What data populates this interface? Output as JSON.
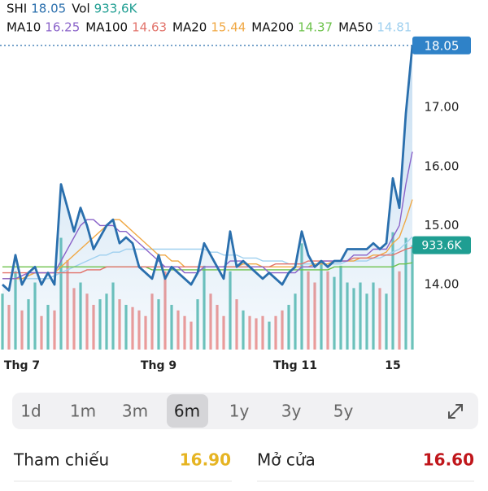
{
  "chart_data": {
    "type": "stock",
    "categories": [
      null,
      null,
      null,
      "Thg 7",
      null,
      null,
      null,
      null,
      null,
      null,
      null,
      null,
      null,
      null,
      null,
      null,
      null,
      null,
      null,
      null,
      null,
      null,
      null,
      null,
      "Thg 9",
      null,
      null,
      null,
      null,
      null,
      null,
      null,
      null,
      null,
      null,
      null,
      null,
      null,
      null,
      null,
      null,
      null,
      null,
      null,
      null,
      "Thg 11",
      null,
      null,
      null,
      null,
      null,
      null,
      null,
      null,
      null,
      null,
      null,
      null,
      null,
      null,
      "15",
      null,
      null,
      null
    ],
    "ylim": [
      12.9,
      18.2
    ],
    "yticks": [
      {
        "value": 14,
        "label": "14.00"
      },
      {
        "value": 15,
        "label": "15.00"
      },
      {
        "value": 16,
        "label": "16.00"
      },
      {
        "value": 17,
        "label": "17.00"
      }
    ],
    "y2lim": [
      0,
      2800000
    ],
    "grid": false,
    "series": [
      {
        "name": "SHI",
        "type": "area",
        "color": "#2a6fad",
        "values": [
          14.0,
          13.9,
          14.5,
          14.0,
          14.2,
          14.3,
          14.0,
          14.2,
          14.0,
          15.7,
          15.3,
          14.9,
          15.3,
          15.0,
          14.6,
          14.8,
          15.0,
          15.1,
          14.7,
          14.8,
          14.7,
          14.3,
          14.2,
          14.1,
          14.5,
          14.1,
          14.3,
          14.2,
          14.1,
          14.0,
          14.2,
          14.7,
          14.5,
          14.3,
          14.1,
          14.9,
          14.3,
          14.4,
          14.3,
          14.2,
          14.1,
          14.2,
          14.1,
          14.0,
          14.2,
          14.3,
          14.9,
          14.5,
          14.3,
          14.4,
          14.3,
          14.4,
          14.4,
          14.6,
          14.6,
          14.6,
          14.6,
          14.7,
          14.6,
          14.7,
          15.8,
          15.3,
          16.9,
          18.05
        ]
      },
      {
        "name": "Vol",
        "type": "bar",
        "axis": "y2",
        "color": "#1f9e92",
        "up_color": "#6cc3b9",
        "down_color": "#f29b97",
        "header_label": "933,6K",
        "tag_label": "933.6K",
        "values": [
          500000,
          400000,
          700000,
          350000,
          450000,
          600000,
          300000,
          400000,
          350000,
          1000000,
          800000,
          550000,
          600000,
          500000,
          400000,
          450000,
          500000,
          600000,
          450000,
          400000,
          380000,
          350000,
          300000,
          500000,
          450000,
          700000,
          400000,
          350000,
          300000,
          250000,
          450000,
          750000,
          500000,
          400000,
          300000,
          700000,
          450000,
          350000,
          300000,
          280000,
          300000,
          250000,
          300000,
          350000,
          400000,
          500000,
          950000,
          700000,
          600000,
          800000,
          700000,
          650000,
          750000,
          600000,
          550000,
          600000,
          500000,
          600000,
          550000,
          500000,
          1050000,
          700000,
          1000000,
          933600
        ]
      },
      {
        "name": "MA10",
        "type": "line",
        "color": "#8a63c9",
        "values": [
          14.1,
          14.1,
          14.1,
          14.15,
          14.2,
          14.2,
          14.2,
          14.2,
          14.2,
          14.4,
          14.6,
          14.8,
          15.0,
          15.1,
          15.1,
          15.0,
          15.0,
          15.0,
          14.9,
          14.9,
          14.8,
          14.7,
          14.6,
          14.5,
          14.4,
          14.3,
          14.3,
          14.3,
          14.2,
          14.2,
          14.2,
          14.3,
          14.3,
          14.3,
          14.3,
          14.4,
          14.4,
          14.4,
          14.3,
          14.3,
          14.3,
          14.2,
          14.2,
          14.2,
          14.2,
          14.2,
          14.3,
          14.3,
          14.3,
          14.4,
          14.4,
          14.4,
          14.4,
          14.4,
          14.5,
          14.5,
          14.5,
          14.6,
          14.6,
          14.6,
          14.8,
          15.0,
          15.7,
          16.25
        ]
      },
      {
        "name": "MA100",
        "type": "line",
        "color": "#e2736b",
        "values": [
          14.2,
          14.2,
          14.2,
          14.2,
          14.2,
          14.2,
          14.2,
          14.2,
          14.2,
          14.2,
          14.2,
          14.2,
          14.2,
          14.25,
          14.25,
          14.25,
          14.3,
          14.3,
          14.3,
          14.3,
          14.3,
          14.3,
          14.3,
          14.3,
          14.3,
          14.3,
          14.3,
          14.3,
          14.3,
          14.3,
          14.3,
          14.3,
          14.3,
          14.3,
          14.3,
          14.3,
          14.3,
          14.3,
          14.3,
          14.3,
          14.3,
          14.3,
          14.35,
          14.35,
          14.35,
          14.35,
          14.35,
          14.4,
          14.4,
          14.4,
          14.4,
          14.4,
          14.4,
          14.4,
          14.45,
          14.45,
          14.45,
          14.45,
          14.5,
          14.5,
          14.5,
          14.55,
          14.6,
          14.63
        ]
      },
      {
        "name": "MA20",
        "type": "line",
        "color": "#f0a844",
        "values": [
          14.1,
          14.1,
          14.1,
          14.1,
          14.15,
          14.2,
          14.2,
          14.2,
          14.2,
          14.3,
          14.4,
          14.5,
          14.6,
          14.7,
          14.8,
          14.9,
          15.0,
          15.1,
          15.1,
          15.0,
          14.9,
          14.8,
          14.7,
          14.6,
          14.5,
          14.5,
          14.4,
          14.4,
          14.3,
          14.3,
          14.3,
          14.3,
          14.3,
          14.3,
          14.3,
          14.3,
          14.3,
          14.35,
          14.35,
          14.35,
          14.3,
          14.3,
          14.3,
          14.3,
          14.3,
          14.3,
          14.3,
          14.3,
          14.35,
          14.35,
          14.35,
          14.4,
          14.4,
          14.4,
          14.4,
          14.45,
          14.45,
          14.5,
          14.5,
          14.55,
          14.7,
          14.8,
          15.1,
          15.44
        ]
      },
      {
        "name": "MA200",
        "type": "line",
        "color": "#6dc24b",
        "values": [
          14.3,
          14.3,
          14.3,
          14.3,
          14.3,
          14.3,
          14.3,
          14.3,
          14.3,
          14.3,
          14.3,
          14.3,
          14.3,
          14.3,
          14.3,
          14.3,
          14.3,
          14.3,
          14.3,
          14.3,
          14.3,
          14.3,
          14.3,
          14.25,
          14.25,
          14.25,
          14.25,
          14.25,
          14.25,
          14.25,
          14.25,
          14.25,
          14.25,
          14.25,
          14.25,
          14.25,
          14.25,
          14.25,
          14.25,
          14.25,
          14.25,
          14.25,
          14.25,
          14.25,
          14.25,
          14.25,
          14.25,
          14.25,
          14.25,
          14.25,
          14.25,
          14.3,
          14.3,
          14.3,
          14.3,
          14.3,
          14.3,
          14.3,
          14.3,
          14.3,
          14.3,
          14.35,
          14.35,
          14.37
        ]
      },
      {
        "name": "MA50",
        "type": "line",
        "color": "#9fd0ef",
        "values": [
          14.1,
          14.1,
          14.1,
          14.1,
          14.1,
          14.1,
          14.1,
          14.1,
          14.15,
          14.2,
          14.25,
          14.3,
          14.35,
          14.4,
          14.45,
          14.5,
          14.5,
          14.55,
          14.55,
          14.6,
          14.6,
          14.6,
          14.6,
          14.6,
          14.6,
          14.6,
          14.6,
          14.6,
          14.6,
          14.6,
          14.6,
          14.6,
          14.55,
          14.55,
          14.5,
          14.5,
          14.5,
          14.45,
          14.45,
          14.45,
          14.4,
          14.4,
          14.4,
          14.4,
          14.35,
          14.35,
          14.35,
          14.35,
          14.35,
          14.35,
          14.35,
          14.35,
          14.35,
          14.4,
          14.4,
          14.4,
          14.4,
          14.45,
          14.45,
          14.5,
          14.55,
          14.6,
          14.7,
          14.81
        ]
      }
    ]
  },
  "range_tabs": {
    "options": [
      "1d",
      "1m",
      "3m",
      "6m",
      "1y",
      "3y",
      "5y"
    ],
    "selected_index": 3
  },
  "quote": [
    {
      "label": "Tham chiếu",
      "value": "16.90",
      "color": "#e6b422"
    },
    {
      "label": "Mở cửa",
      "value": "16.60",
      "color": "#c0161b"
    }
  ]
}
